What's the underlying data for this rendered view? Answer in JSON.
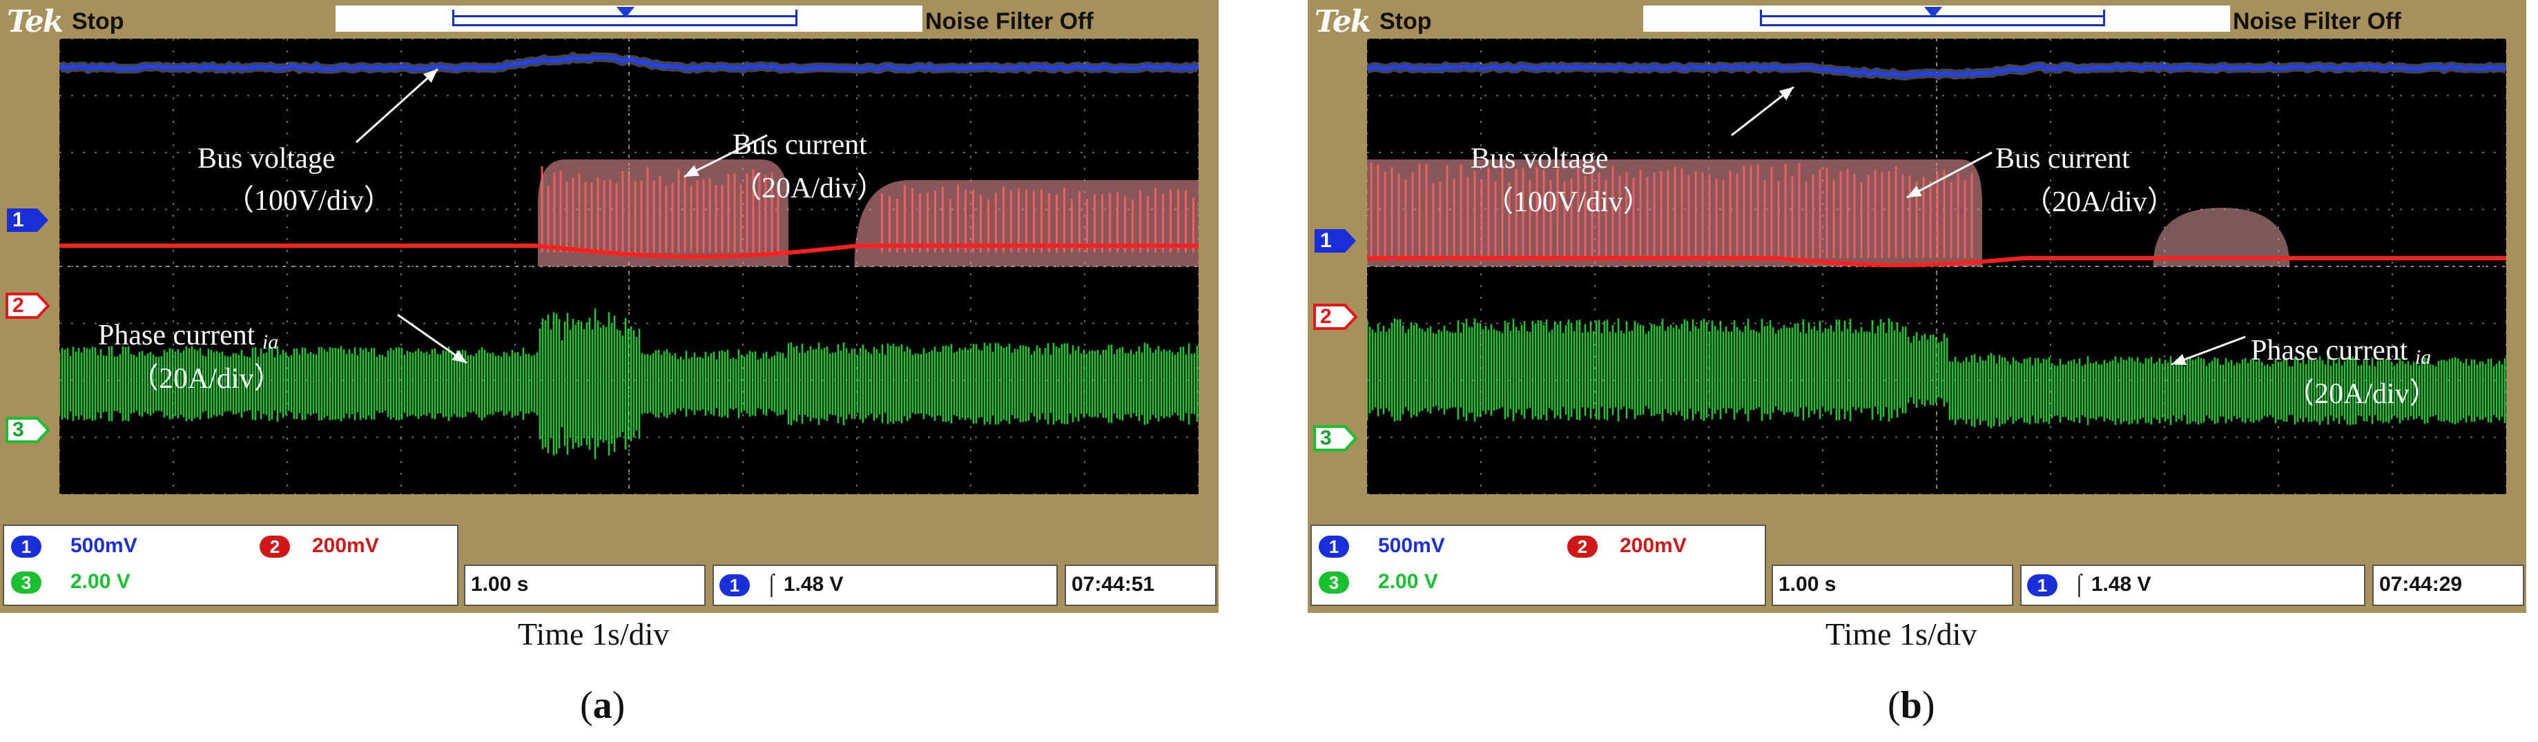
{
  "chart_data": [
    {
      "type": "line",
      "panel": "(a)",
      "status": "Stop",
      "filter": "Noise Filter Off",
      "xlabel": "Time 1s/div",
      "timebase": "1.00 s",
      "trigger": "1.48 V",
      "trigger_channel": "1",
      "clock": "07:44:51",
      "channels": [
        {
          "id": "1",
          "scale": "500mV",
          "color": "#1a2fd8"
        },
        {
          "id": "2",
          "scale": "200mV",
          "color": "#e01818"
        },
        {
          "id": "3",
          "scale": "2.00 V",
          "color": "#19e03a"
        }
      ],
      "annotations": {
        "bus_voltage": "Bus voltage",
        "bus_voltage_scale": "（100V/div）",
        "bus_current": "Bus current",
        "bus_current_scale": "（20A/div）",
        "phase_current": "Phase current",
        "phase_current_sym": "ia",
        "phase_current_scale": "（20A/div）"
      },
      "events": {
        "disturbance_start_div": 4.2,
        "disturbance_end_div": 6.4,
        "burst_gap_div": [
          6.4,
          7.1
        ]
      }
    },
    {
      "type": "line",
      "panel": "(b)",
      "status": "Stop",
      "filter": "Noise Filter Off",
      "xlabel": "Time 1s/div",
      "timebase": "1.00 s",
      "trigger": "1.48 V",
      "trigger_channel": "1",
      "clock": "07:44:29",
      "channels": [
        {
          "id": "1",
          "scale": "500mV",
          "color": "#1a2fd8"
        },
        {
          "id": "2",
          "scale": "200mV",
          "color": "#e01818"
        },
        {
          "id": "3",
          "scale": "2.00 V",
          "color": "#19e03a"
        }
      ],
      "annotations": {
        "bus_voltage": "Bus voltage",
        "bus_voltage_scale": "（100V/div）",
        "bus_current": "Bus current",
        "bus_current_scale": "（20A/div）",
        "phase_current": "Phase current",
        "phase_current_sym": "ia",
        "phase_current_scale": "（20A/div）"
      },
      "events": {
        "burst_end_div": 5.4,
        "tail_div": [
          6.9,
          8.1
        ],
        "phase_drop_div": 5.1
      }
    }
  ]
}
